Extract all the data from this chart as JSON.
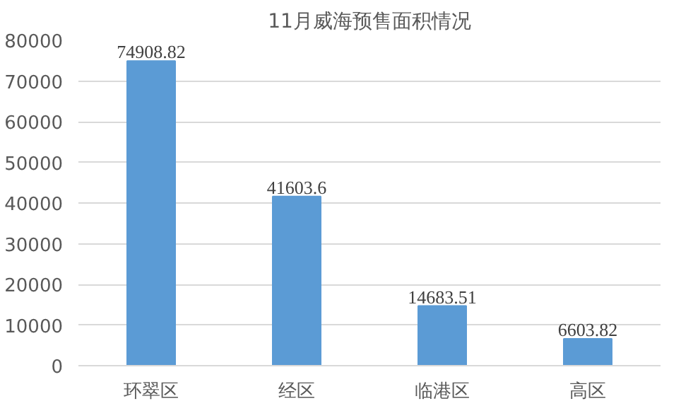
{
  "chart_data": {
    "type": "bar",
    "title": "11月威海预售面积情况",
    "categories": [
      "环翠区",
      "经区",
      "临港区",
      "高区"
    ],
    "values": [
      74908.82,
      41603.6,
      14683.51,
      6603.82
    ],
    "color": "#5b9bd5",
    "ylim": [
      0,
      80000
    ],
    "yticks": [
      0,
      10000,
      20000,
      30000,
      40000,
      50000,
      60000,
      70000,
      80000
    ],
    "grid": "y",
    "data_labels": true
  }
}
